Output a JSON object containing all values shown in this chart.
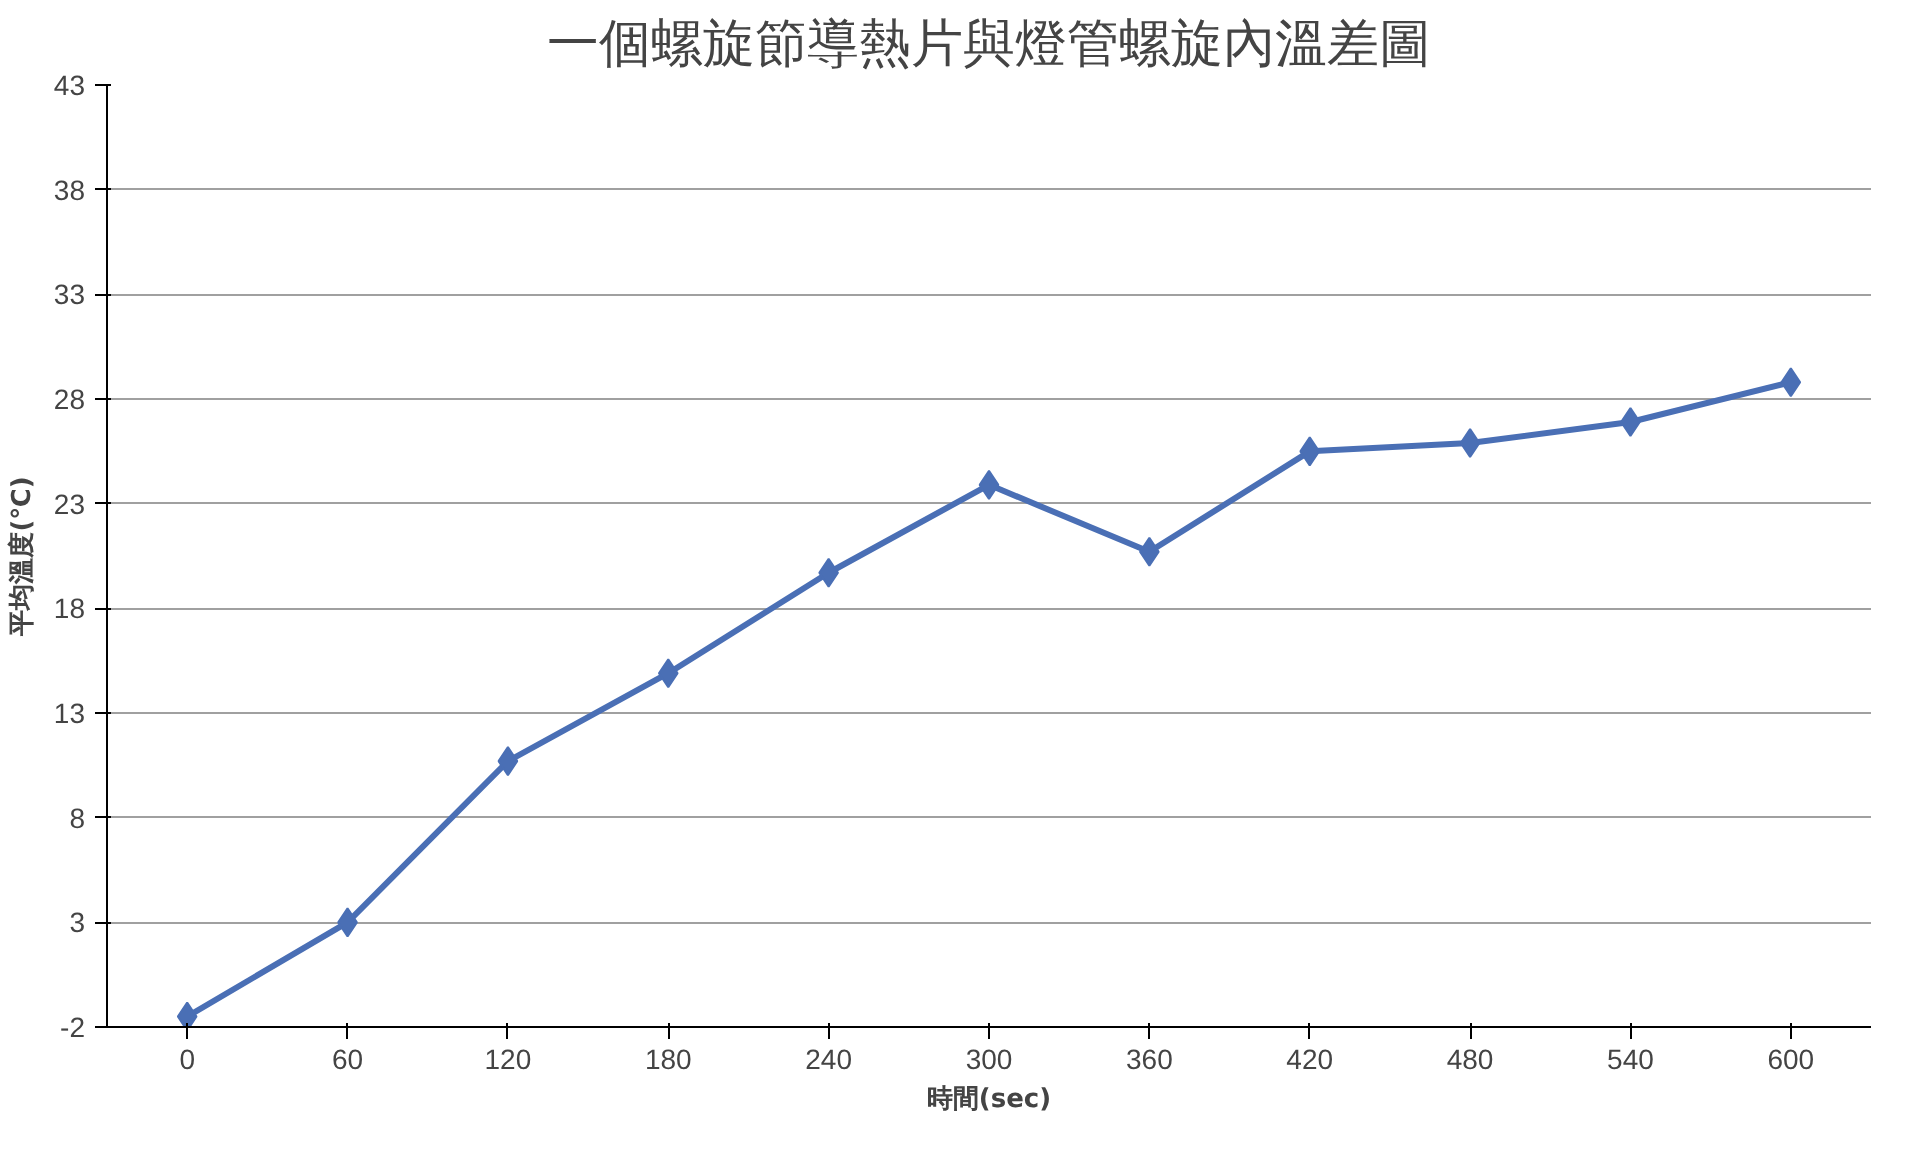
{
  "chart_data": {
    "type": "line",
    "title": "一個螺旋節導熱片與燈管螺旋內溫差圖",
    "xlabel": "時間(sec)",
    "ylabel": "平均溫度(℃)",
    "categories": [
      "0",
      "60",
      "120",
      "180",
      "240",
      "300",
      "360",
      "420",
      "480",
      "540",
      "600"
    ],
    "series": [
      {
        "color": "#4a6fb5",
        "values": [
          -1.5,
          3.0,
          10.7,
          14.9,
          19.7,
          23.9,
          20.7,
          25.5,
          25.9,
          26.9,
          28.8
        ]
      }
    ],
    "ylim": [
      -2,
      43
    ],
    "yticks": [
      -2,
      3,
      8,
      13,
      18,
      23,
      28,
      33,
      38,
      43
    ],
    "grid": "y",
    "marker": "diamond",
    "line_style": "solid"
  }
}
